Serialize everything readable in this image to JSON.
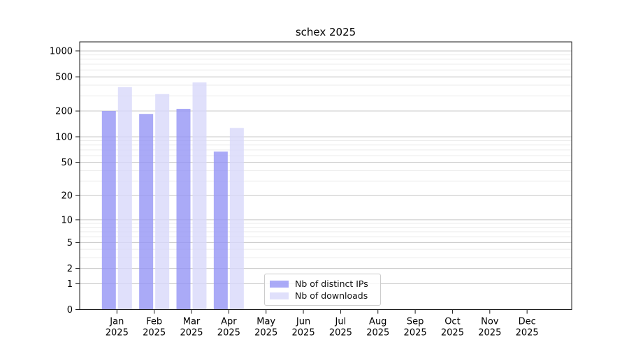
{
  "chart_data": {
    "type": "bar",
    "title": "schex 2025",
    "y_scale": "log10(1+v)",
    "grid": "horizontal-major-and-minor",
    "legend_position": "lower-center",
    "x_year": "2025",
    "categories": [
      "Jan",
      "Feb",
      "Mar",
      "Apr",
      "May",
      "Jun",
      "Jul",
      "Aug",
      "Sep",
      "Oct",
      "Nov",
      "Dec"
    ],
    "series": [
      {
        "name": "Nb of distinct IPs",
        "color": "#9595f5",
        "opacity": 0.8,
        "values": [
          200,
          185,
          212,
          67,
          null,
          null,
          null,
          null,
          null,
          null,
          null,
          null
        ]
      },
      {
        "name": "Nb of downloads",
        "color": "#d8d8fa",
        "opacity": 0.8,
        "values": [
          380,
          315,
          430,
          127,
          null,
          null,
          null,
          null,
          null,
          null,
          null,
          null
        ]
      }
    ],
    "y_ticks": [
      0,
      1,
      2,
      5,
      10,
      20,
      50,
      100,
      200,
      500,
      1000
    ],
    "y_minor_ticks": [
      3,
      4,
      6,
      7,
      8,
      9,
      30,
      40,
      60,
      70,
      80,
      90,
      300,
      400,
      600,
      700,
      800,
      900
    ],
    "ylim_top_value": 1270,
    "colors": {
      "major_grid": "#c8c8c8",
      "minor_grid": "#ebebeb",
      "spine": "#1a1a1a"
    }
  }
}
